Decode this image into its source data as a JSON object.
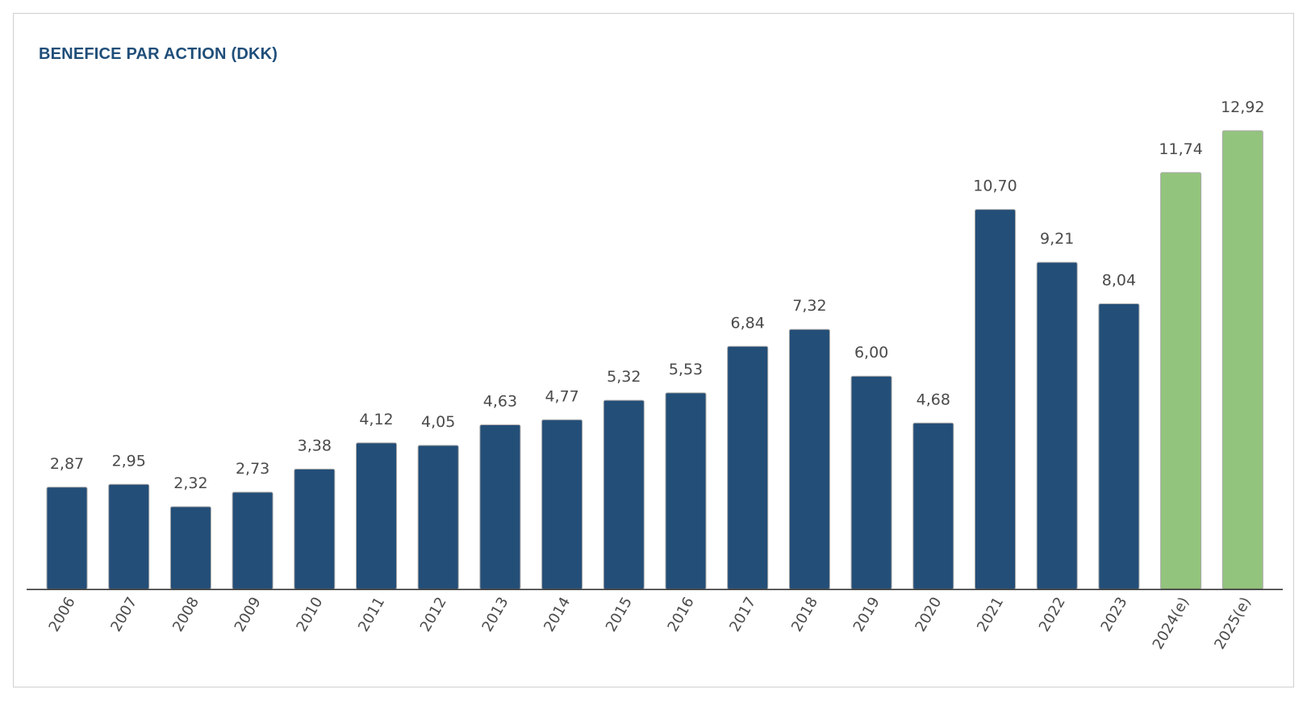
{
  "chart_data": {
    "type": "bar",
    "title": "BENEFICE PAR ACTION (DKK)",
    "xlabel": "",
    "ylabel": "",
    "categories": [
      "2006",
      "2007",
      "2008",
      "2009",
      "2010",
      "2011",
      "2012",
      "2013",
      "2014",
      "2015",
      "2016",
      "2017",
      "2018",
      "2019",
      "2020",
      "2021",
      "2022",
      "2023",
      "2024(e)",
      "2025(e)"
    ],
    "values": [
      2.87,
      2.95,
      2.32,
      2.73,
      3.38,
      4.12,
      4.05,
      4.63,
      4.77,
      5.32,
      5.53,
      6.84,
      7.32,
      6.0,
      4.68,
      10.7,
      9.21,
      8.04,
      11.74,
      12.92
    ],
    "value_labels": [
      "2,87",
      "2,95",
      "2,32",
      "2,73",
      "3,38",
      "4,12",
      "4,05",
      "4,63",
      "4,77",
      "5,32",
      "5,53",
      "6,84",
      "7,32",
      "6,00",
      "4,68",
      "10,70",
      "9,21",
      "8,04",
      "11,74",
      "12,92"
    ],
    "ylim": [
      0,
      12.92
    ],
    "grid": false,
    "colors": {
      "actual": "#234e78",
      "estimate": "#93c47d",
      "bar_outline": "#a9a9a9",
      "axis": "#222222"
    },
    "estimate_categories": [
      "2024(e)",
      "2025(e)"
    ]
  }
}
